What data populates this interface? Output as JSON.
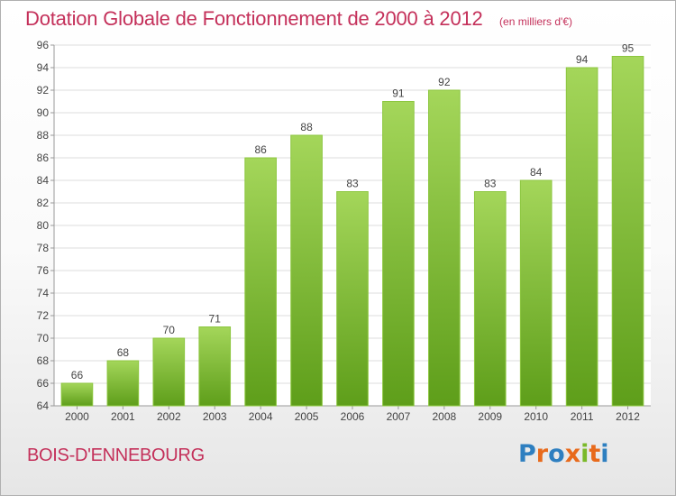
{
  "header": {
    "title": "Dotation Globale de Fonctionnement de 2000 à 2012",
    "unit_note": "(en milliers d'€)"
  },
  "footer": {
    "city": "BOIS-D'ENNEBOURG",
    "logo_text": "Proxiti"
  },
  "colors": {
    "accent": "#c4305a",
    "bar_top": "#a4d65a",
    "bar_bottom": "#5e9e1a",
    "grid": "#dddddd"
  },
  "chart_data": {
    "type": "bar",
    "title": "Dotation Globale de Fonctionnement de 2000 à 2012",
    "subtitle": "(en milliers d'€)",
    "xlabel": "",
    "ylabel": "",
    "ylim": [
      64,
      96
    ],
    "ytick_step": 2,
    "grid": true,
    "categories": [
      "2000",
      "2001",
      "2002",
      "2003",
      "2004",
      "2005",
      "2006",
      "2007",
      "2008",
      "2009",
      "2010",
      "2011",
      "2012"
    ],
    "values": [
      66,
      68,
      70,
      71,
      86,
      88,
      83,
      91,
      92,
      83,
      84,
      94,
      95
    ]
  }
}
